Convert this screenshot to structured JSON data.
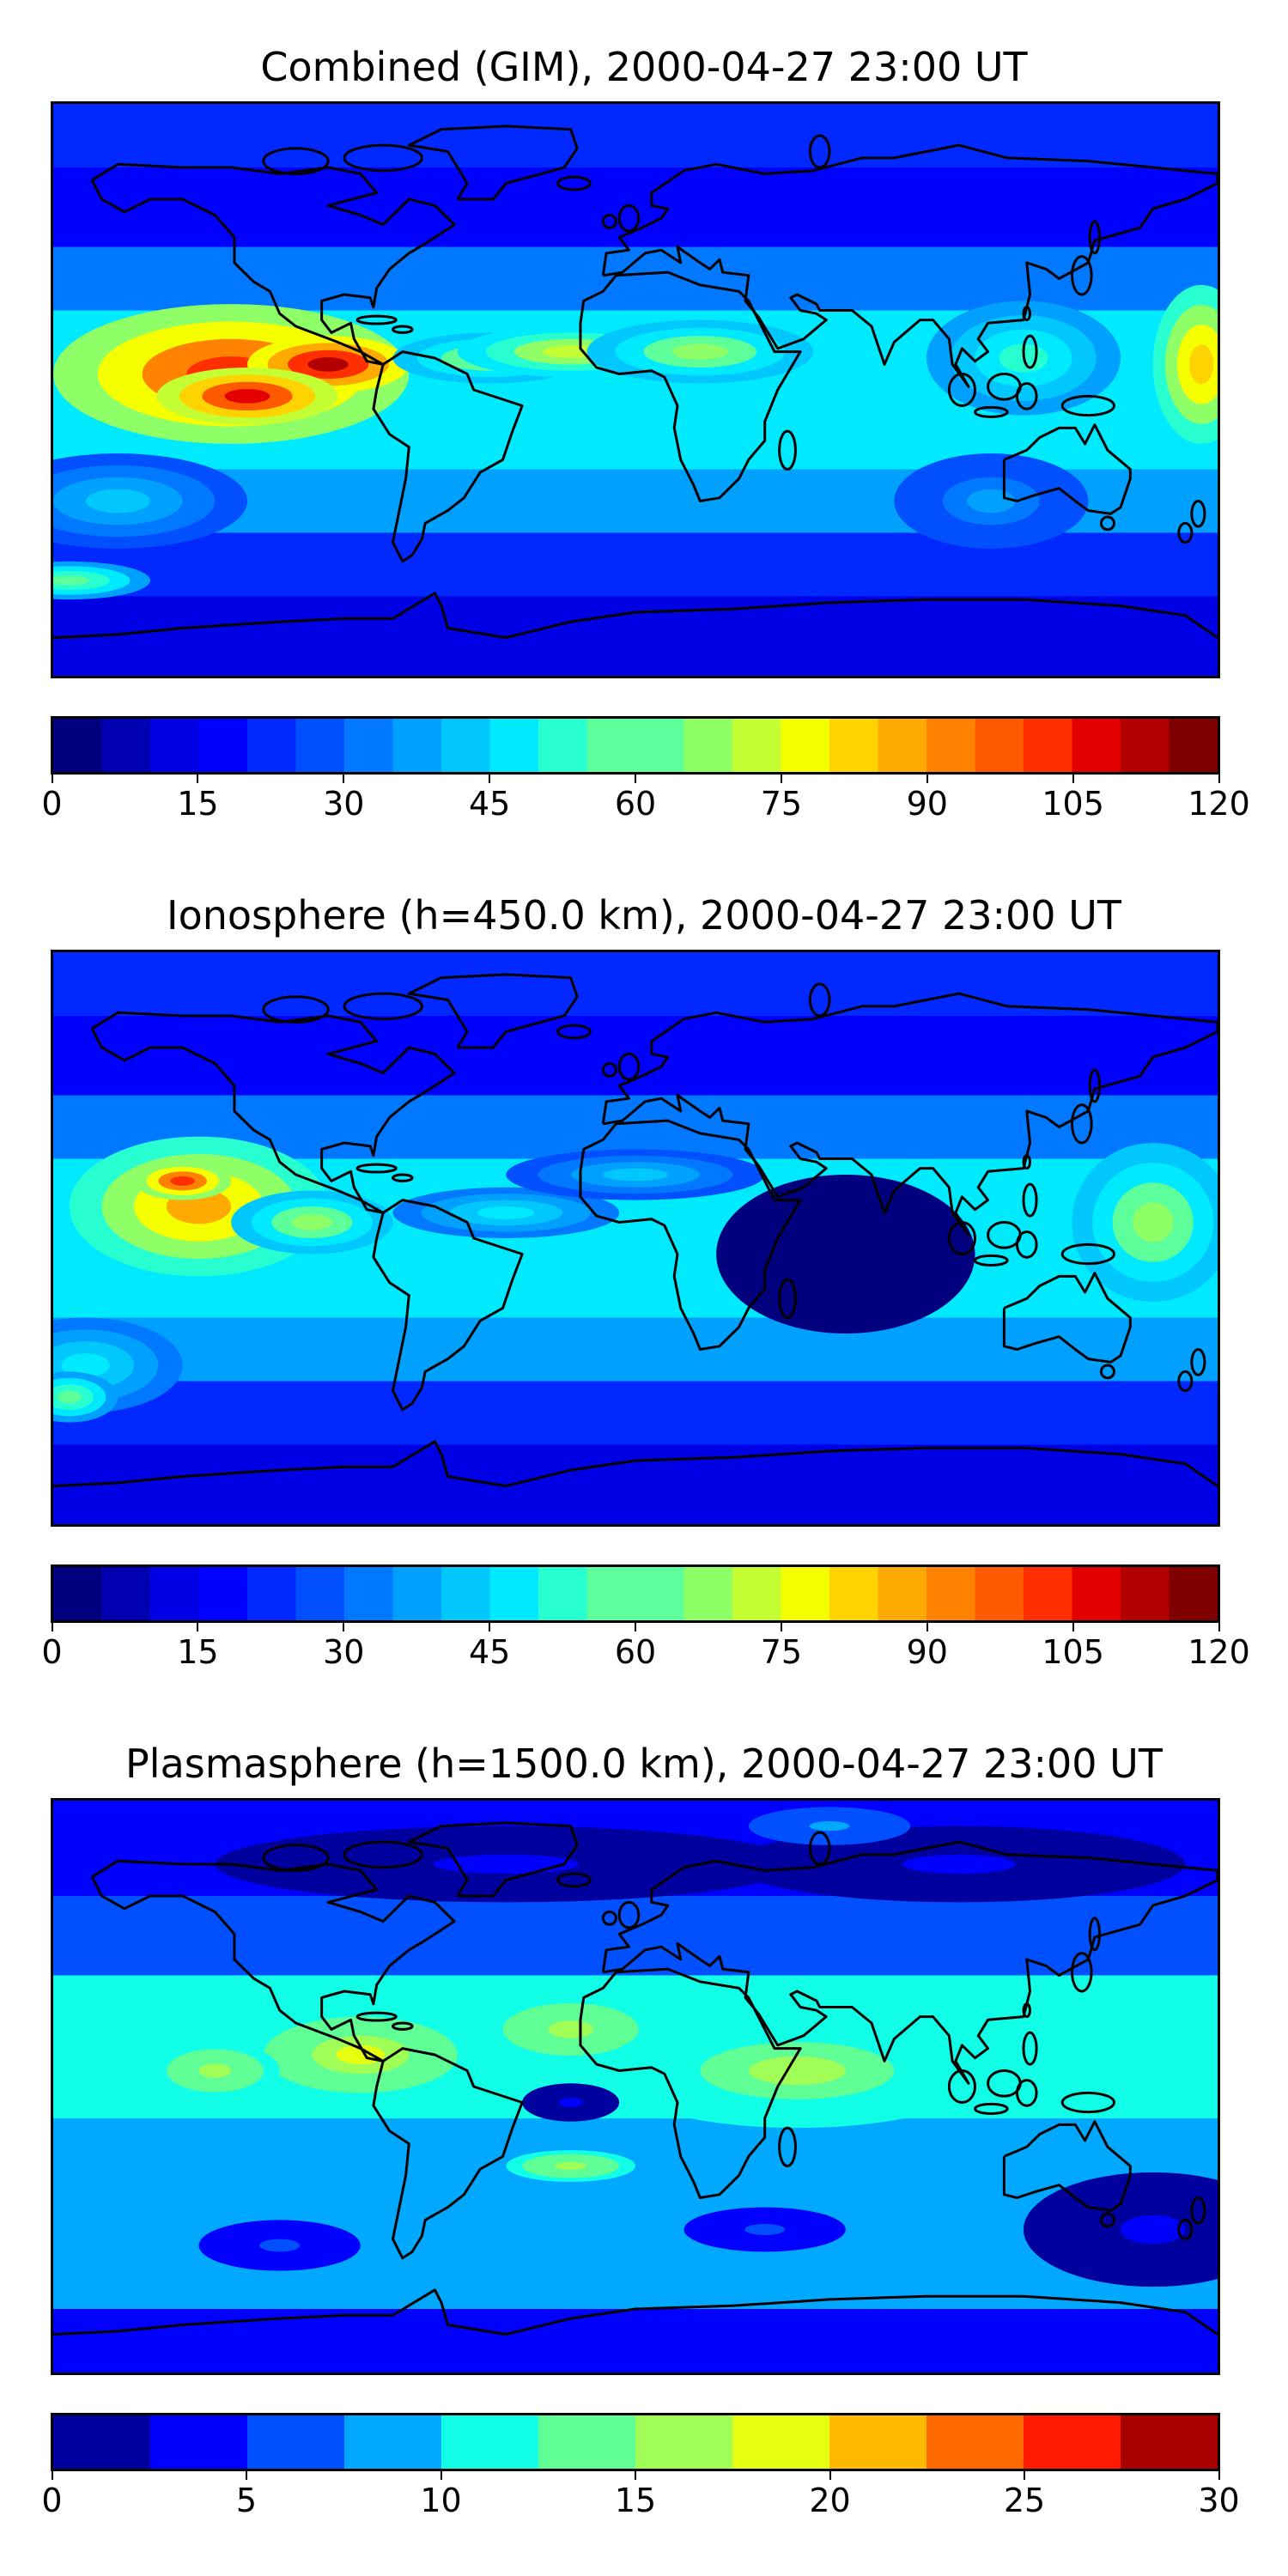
{
  "panels": [
    {
      "title": "Combined (GIM), 2000-04-27 23:00 UT",
      "colorbar": {
        "min": 0,
        "max": 120,
        "step": 5,
        "ticks": [
          "0",
          "15",
          "30",
          "45",
          "60",
          "75",
          "90",
          "105",
          "120"
        ]
      },
      "features": [
        {
          "lon": -125,
          "lat": 5,
          "rx": 55,
          "ry": 22,
          "level": 0.85
        },
        {
          "lon": -95,
          "lat": 8,
          "rx": 25,
          "ry": 9,
          "level": 0.95
        },
        {
          "lon": -120,
          "lat": -2,
          "rx": 28,
          "ry": 9,
          "level": 0.9
        },
        {
          "lon": -45,
          "lat": 10,
          "rx": 30,
          "ry": 8,
          "level": 0.55
        },
        {
          "lon": -20,
          "lat": 12,
          "rx": 35,
          "ry": 8,
          "level": 0.6
        },
        {
          "lon": 20,
          "lat": 12,
          "rx": 35,
          "ry": 10,
          "level": 0.55
        },
        {
          "lon": 120,
          "lat": 10,
          "rx": 30,
          "ry": 18,
          "level": 0.45
        },
        {
          "lon": 175,
          "lat": 8,
          "rx": 15,
          "ry": 25,
          "level": 0.7
        },
        {
          "lon": -160,
          "lat": -35,
          "rx": 40,
          "ry": 15,
          "level": 0.35
        },
        {
          "lon": -175,
          "lat": -60,
          "rx": 25,
          "ry": 6,
          "level": 0.5
        },
        {
          "lon": 110,
          "lat": -35,
          "rx": 30,
          "ry": 15,
          "level": 0.32
        }
      ]
    },
    {
      "title": "Ionosphere  (h=450.0 km), 2000-04-27 23:00 UT",
      "colorbar": {
        "min": 0,
        "max": 120,
        "step": 5,
        "ticks": [
          "0",
          "15",
          "30",
          "45",
          "60",
          "75",
          "90",
          "105",
          "120"
        ]
      },
      "features": [
        {
          "lon": -135,
          "lat": 10,
          "rx": 40,
          "ry": 22,
          "level": 0.72
        },
        {
          "lon": -140,
          "lat": 18,
          "rx": 15,
          "ry": 6,
          "level": 0.85
        },
        {
          "lon": -100,
          "lat": 5,
          "rx": 25,
          "ry": 10,
          "level": 0.55
        },
        {
          "lon": -40,
          "lat": 8,
          "rx": 35,
          "ry": 8,
          "level": 0.4
        },
        {
          "lon": 0,
          "lat": 20,
          "rx": 40,
          "ry": 8,
          "level": 0.35
        },
        {
          "lon": 160,
          "lat": 5,
          "rx": 25,
          "ry": 25,
          "level": 0.55
        },
        {
          "lon": -170,
          "lat": -40,
          "rx": 30,
          "ry": 15,
          "level": 0.42
        },
        {
          "lon": -175,
          "lat": -50,
          "rx": 15,
          "ry": 8,
          "level": 0.5
        },
        {
          "lon": 65,
          "lat": -5,
          "rx": 40,
          "ry": 25,
          "level": 0.02
        }
      ]
    },
    {
      "title": "Plasmasphere (h=1500.0 km), 2000-04-27 23:00 UT",
      "colorbar": {
        "min": 0,
        "max": 30,
        "step": 2.5,
        "ticks": [
          "0",
          "5",
          "10",
          "15",
          "20",
          "25",
          "30"
        ]
      },
      "features": [
        {
          "lon": -20,
          "lat": 18,
          "rx": 15,
          "ry": 7,
          "level": 0.92
        },
        {
          "lon": -20,
          "lat": 18,
          "rx": 28,
          "ry": 11,
          "level": 0.55
        },
        {
          "lon": -85,
          "lat": 10,
          "rx": 30,
          "ry": 12,
          "level": 0.62
        },
        {
          "lon": -130,
          "lat": 5,
          "rx": 20,
          "ry": 9,
          "level": 0.55
        },
        {
          "lon": 50,
          "lat": 5,
          "rx": 60,
          "ry": 18,
          "level": 0.5
        },
        {
          "lon": -20,
          "lat": -5,
          "rx": 15,
          "ry": 6,
          "level": 0.05
        },
        {
          "lon": -20,
          "lat": -25,
          "rx": 20,
          "ry": 5,
          "level": 0.55
        },
        {
          "lon": 160,
          "lat": -45,
          "rx": 40,
          "ry": 18,
          "level": 0.05
        },
        {
          "lon": 40,
          "lat": -45,
          "rx": 25,
          "ry": 7,
          "level": 0.15
        },
        {
          "lon": -110,
          "lat": -50,
          "rx": 25,
          "ry": 8,
          "level": 0.15
        },
        {
          "lon": -40,
          "lat": 70,
          "rx": 90,
          "ry": 12,
          "level": 0.05
        },
        {
          "lon": 100,
          "lat": 70,
          "rx": 70,
          "ry": 12,
          "level": 0.05
        },
        {
          "lon": 60,
          "lat": 82,
          "rx": 25,
          "ry": 6,
          "level": 0.25
        }
      ]
    }
  ],
  "colors": {
    "jet": [
      "#00007f",
      "#0000b2",
      "#0000e5",
      "#0000ff",
      "#0028ff",
      "#0050ff",
      "#0078ff",
      "#00a0ff",
      "#00c8ff",
      "#00eaff",
      "#27ffd0",
      "#5cff9a",
      "#8fff67",
      "#c3ff33",
      "#f6ff00",
      "#ffd300",
      "#ffaa00",
      "#ff8200",
      "#ff5a00",
      "#ff2f00",
      "#e50000",
      "#b20000",
      "#7f0000"
    ],
    "jet12": [
      "#00009f",
      "#0000ff",
      "#0050ff",
      "#00a8ff",
      "#10ffe6",
      "#60ff96",
      "#a0ff57",
      "#e6ff10",
      "#ffba00",
      "#ff6a00",
      "#ff1a00",
      "#a80000"
    ],
    "coast": "#000000"
  }
}
